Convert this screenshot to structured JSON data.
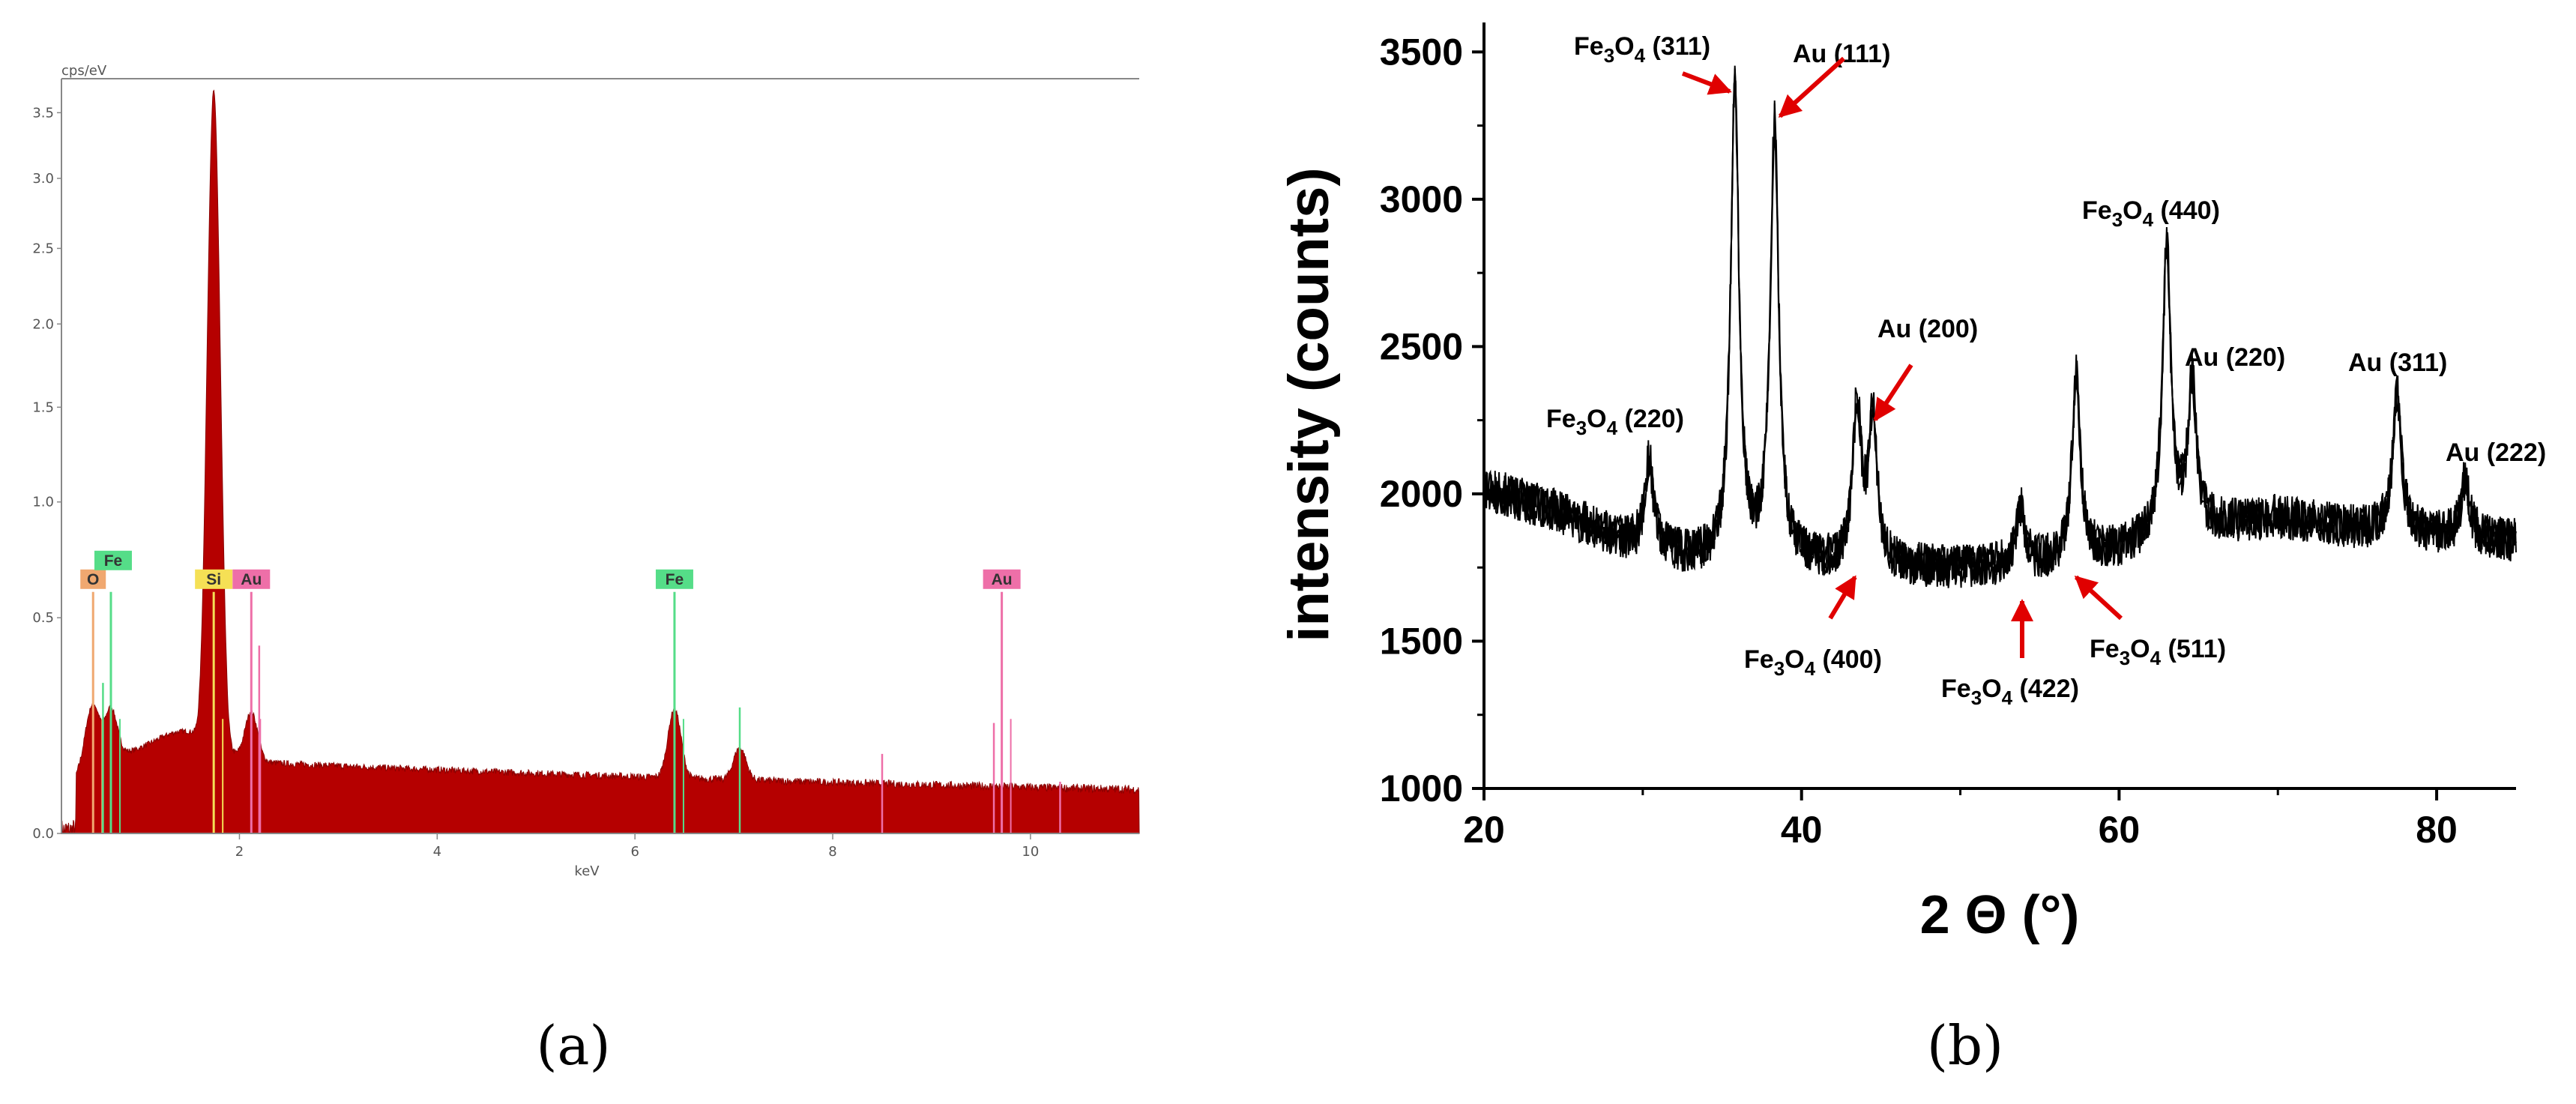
{
  "panel_labels": {
    "a": "(a)",
    "b": "(b)"
  },
  "chart_data": [
    {
      "id": "eds",
      "type": "area",
      "title": "",
      "ylabel": "cps/eV",
      "xlabel": "keV",
      "xlim": [
        0.2,
        11.1
      ],
      "ylim": [
        0,
        3.65
      ],
      "x_ticks": [
        "2",
        "4",
        "6",
        "8",
        "10"
      ],
      "y_ticks": [
        "0.0",
        "0.5",
        "1.0",
        "1.5",
        "2.0",
        "2.5",
        "3.0",
        "3.5"
      ],
      "fill_color": "#b50000",
      "grid": false,
      "peaks": [
        {
          "element": "O",
          "energy": 0.52,
          "height": 0.12
        },
        {
          "element": "Fe",
          "energy": 0.7,
          "height": 0.11
        },
        {
          "element": "Si",
          "energy": 1.74,
          "height": 3.55
        },
        {
          "element": "Au",
          "energy": 2.12,
          "height": 0.11
        },
        {
          "element": "Fe",
          "energy": 6.4,
          "height": 0.15
        },
        {
          "element": "Fe",
          "energy": 7.06,
          "height": 0.06
        }
      ],
      "element_markers": [
        {
          "label": "O",
          "energy": 0.52,
          "color": "#f0a870",
          "line_height": 0.6
        },
        {
          "label": "Fe",
          "energy": 0.7,
          "color": "#55dd88",
          "line_height": 0.6
        },
        {
          "label": "Si",
          "energy": 1.74,
          "color": "#f5e055",
          "line_height": 0.6
        },
        {
          "label": "Au",
          "energy": 2.12,
          "color": "#ee6fa8",
          "line_height": 0.6
        },
        {
          "label": "Fe",
          "energy": 6.4,
          "color": "#55dd88",
          "line_height": 0.6
        },
        {
          "label": "Au",
          "energy": 9.71,
          "color": "#ee6fa8",
          "line_height": 0.6
        }
      ]
    },
    {
      "id": "xrd",
      "type": "line",
      "title": "",
      "xlabel": "2 Θ (°)",
      "ylabel": "intensity (counts)",
      "xlim": [
        20,
        85
      ],
      "ylim": [
        1000,
        3600
      ],
      "x_ticks": [
        20,
        40,
        60,
        80
      ],
      "y_ticks": [
        1000,
        1500,
        2000,
        2500,
        3000,
        3500
      ],
      "grid": false,
      "line_color": "#000000",
      "arrow_color": "#e00000",
      "baseline": [
        [
          20,
          2020
        ],
        [
          25,
          1930
        ],
        [
          30,
          1810
        ],
        [
          35,
          1760
        ],
        [
          40,
          1760
        ],
        [
          45,
          1750
        ],
        [
          50,
          1745
        ],
        [
          55,
          1760
        ],
        [
          60,
          1800
        ],
        [
          65,
          1880
        ],
        [
          70,
          1920
        ],
        [
          75,
          1880
        ],
        [
          80,
          1860
        ],
        [
          85,
          1840
        ]
      ],
      "peaks": [
        {
          "label": "Fe3O4 (220)",
          "two_theta": 30.4,
          "intensity": 2120
        },
        {
          "label": "Fe3O4 (311)",
          "two_theta": 35.8,
          "intensity": 3370
        },
        {
          "label": "Au (111)",
          "two_theta": 38.3,
          "intensity": 3240
        },
        {
          "label": "Fe3O4 (400)",
          "two_theta": 43.5,
          "intensity": 2290
        },
        {
          "label": "Au (200)",
          "two_theta": 44.5,
          "intensity": 2250
        },
        {
          "label": "Fe3O4 (422)",
          "two_theta": 53.8,
          "intensity": 1950
        },
        {
          "label": "Fe3O4 (511)",
          "two_theta": 57.3,
          "intensity": 2400
        },
        {
          "label": "Fe3O4 (440)",
          "two_theta": 63.0,
          "intensity": 2830
        },
        {
          "label": "Au (220)",
          "two_theta": 64.6,
          "intensity": 2370
        },
        {
          "label": "Au (311)",
          "two_theta": 77.5,
          "intensity": 2350
        },
        {
          "label": "Au (222)",
          "two_theta": 81.8,
          "intensity": 2050
        }
      ],
      "annotations": [
        {
          "id": "ann-fe3o4-311",
          "main": "Fe",
          "sub1": "3",
          "mid": "O",
          "sub2": "4",
          "suffix": " (311)"
        },
        {
          "id": "ann-au-111",
          "main": "Au (111)"
        },
        {
          "id": "ann-au-200",
          "main": "Au (200)"
        },
        {
          "id": "ann-fe3o4-440",
          "main": "Fe",
          "sub1": "3",
          "mid": "O",
          "sub2": "4",
          "suffix": " (440)"
        },
        {
          "id": "ann-fe3o4-220",
          "main": "Fe",
          "sub1": "3",
          "mid": "O",
          "sub2": "4",
          "suffix": " (220)"
        },
        {
          "id": "ann-au-220",
          "main": "Au (220)"
        },
        {
          "id": "ann-au-311",
          "main": "Au (311)"
        },
        {
          "id": "ann-au-222",
          "main": "Au (222)"
        },
        {
          "id": "ann-fe3o4-400",
          "main": "Fe",
          "sub1": "3",
          "mid": "O",
          "sub2": "4",
          "suffix": " (400)"
        },
        {
          "id": "ann-fe3o4-422",
          "main": "Fe",
          "sub1": "3",
          "mid": "O",
          "sub2": "4",
          "suffix": " (422)"
        },
        {
          "id": "ann-fe3o4-511",
          "main": "Fe",
          "sub1": "3",
          "mid": "O",
          "sub2": "4",
          "suffix": " (511)"
        }
      ]
    }
  ]
}
